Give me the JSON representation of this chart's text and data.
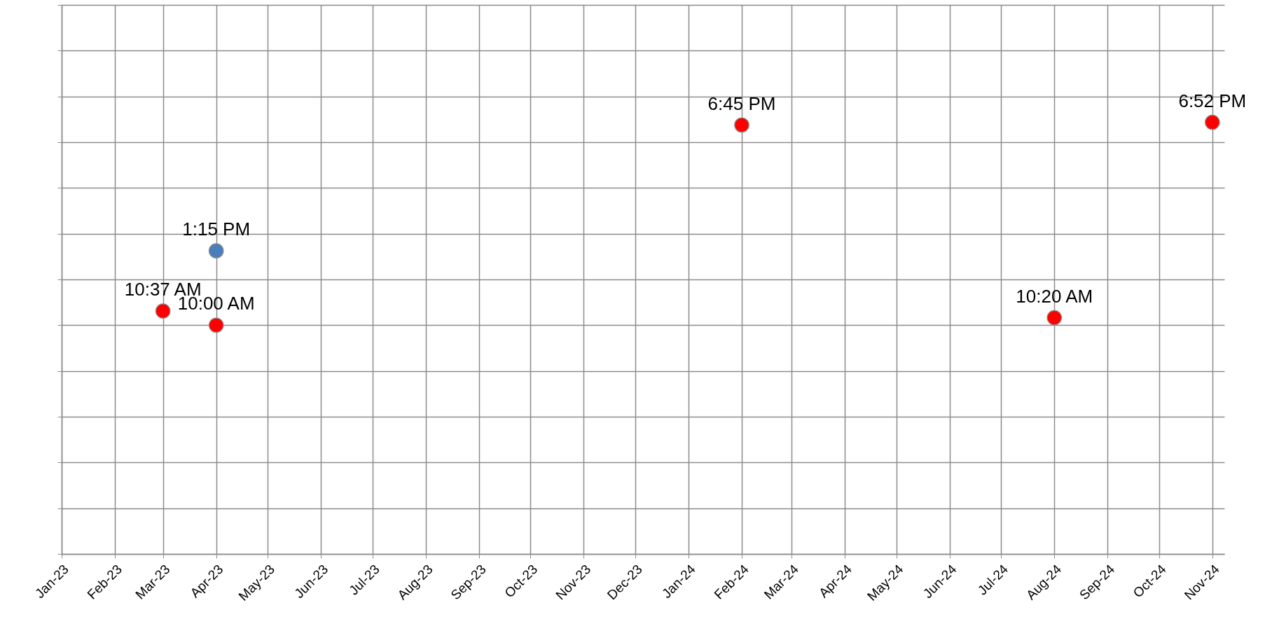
{
  "chart_data": {
    "type": "scatter",
    "marker": "circle",
    "grid": true,
    "tick_labels": "x",
    "xlim": [
      "2023-01-01",
      "2024-11-08"
    ],
    "xticks": [
      {
        "value": "2023-01-01",
        "label": "Jan-23"
      },
      {
        "value": "2023-02-01",
        "label": "Feb-23"
      },
      {
        "value": "2023-03-01",
        "label": "Mar-23"
      },
      {
        "value": "2023-04-01",
        "label": "Apr-23"
      },
      {
        "value": "2023-05-01",
        "label": "May-23"
      },
      {
        "value": "2023-06-01",
        "label": "Jun-23"
      },
      {
        "value": "2023-07-01",
        "label": "Jul-23"
      },
      {
        "value": "2023-08-01",
        "label": "Aug-23"
      },
      {
        "value": "2023-09-01",
        "label": "Sep-23"
      },
      {
        "value": "2023-10-01",
        "label": "Oct-23"
      },
      {
        "value": "2023-11-01",
        "label": "Nov-23"
      },
      {
        "value": "2023-12-01",
        "label": "Dec-23"
      },
      {
        "value": "2024-01-01",
        "label": "Jan-24"
      },
      {
        "value": "2024-02-01",
        "label": "Feb-24"
      },
      {
        "value": "2024-03-01",
        "label": "Mar-24"
      },
      {
        "value": "2024-04-01",
        "label": "Apr-24"
      },
      {
        "value": "2024-05-01",
        "label": "May-24"
      },
      {
        "value": "2024-06-01",
        "label": "Jun-24"
      },
      {
        "value": "2024-07-01",
        "label": "Jul-24"
      },
      {
        "value": "2024-08-01",
        "label": "Aug-24"
      },
      {
        "value": "2024-09-01",
        "label": "Sep-24"
      },
      {
        "value": "2024-10-01",
        "label": "Oct-24"
      },
      {
        "value": "2024-11-01",
        "label": "Nov-24"
      }
    ],
    "ylim": [
      0,
      24
    ],
    "yticks": [
      {
        "value": 0,
        "label": null
      },
      {
        "value": 2,
        "label": null
      },
      {
        "value": 4,
        "label": null
      },
      {
        "value": 6,
        "label": null
      },
      {
        "value": 8,
        "label": null
      },
      {
        "value": 10,
        "label": null
      },
      {
        "value": 12,
        "label": null
      },
      {
        "value": 14,
        "label": null
      },
      {
        "value": 16,
        "label": null
      },
      {
        "value": 18,
        "label": null
      },
      {
        "value": 20,
        "label": null
      },
      {
        "value": 22,
        "label": null
      },
      {
        "value": 24,
        "label": null
      }
    ],
    "series": [
      {
        "color": "#ff0000",
        "x": [
          "2023-03-01",
          "2023-04-01",
          "2024-02-01",
          "2024-08-01",
          "2024-11-01"
        ],
        "values": [
          10.62,
          10.0,
          18.75,
          10.33,
          18.87
        ],
        "value_labels": [
          "10:37 AM",
          "10:00 AM",
          "6:45 PM",
          "10:20 AM",
          "6:52 PM"
        ]
      },
      {
        "color": "#4a7ebb",
        "x": [
          "2023-04-01"
        ],
        "values": [
          13.25
        ],
        "value_labels": [
          "1:15 PM"
        ]
      }
    ]
  }
}
